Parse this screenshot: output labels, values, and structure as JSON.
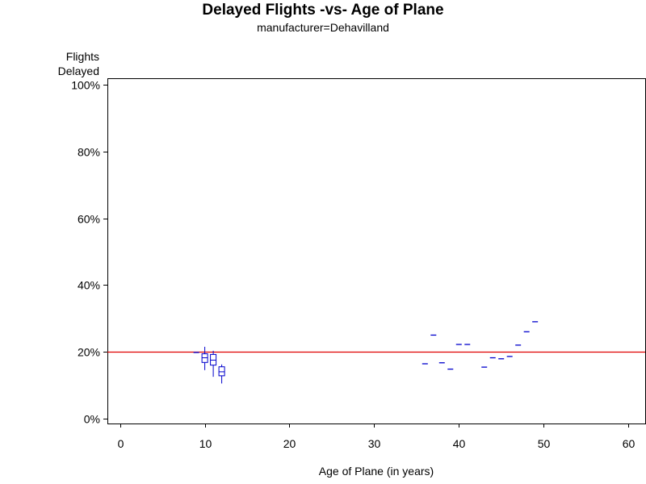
{
  "chart_data": {
    "type": "box",
    "title": "Delayed Flights -vs- Age of Plane",
    "subtitle": "manufacturer=Dehavilland",
    "ylabel": [
      "Flights",
      "Delayed"
    ],
    "xlabel": "Age of Plane (in years)",
    "xlim": [
      -1.5,
      62
    ],
    "ylim": [
      -1.5,
      102
    ],
    "x_ticks": [
      0,
      10,
      20,
      30,
      40,
      50,
      60
    ],
    "y_ticks": [
      0,
      20,
      40,
      60,
      80,
      100
    ],
    "y_tick_labels": [
      "0%",
      "20%",
      "40%",
      "60%",
      "80%",
      "100%"
    ],
    "reference_line": {
      "y": 20,
      "color": "#e00000"
    },
    "box_color": "#0000cc",
    "boxes": [
      {
        "x": 9,
        "min": 19.8,
        "q1": 19.8,
        "median": 19.8,
        "q3": 19.8,
        "max": 19.8
      },
      {
        "x": 10,
        "min": 14.5,
        "q1": 16.8,
        "median": 18.2,
        "q3": 19.4,
        "max": 21.5
      },
      {
        "x": 11,
        "min": 12.5,
        "q1": 16.0,
        "median": 17.5,
        "q3": 19.2,
        "max": 20.3
      },
      {
        "x": 12,
        "min": 10.5,
        "q1": 12.8,
        "median": 14.0,
        "q3": 15.5,
        "max": 16.2
      },
      {
        "x": 36,
        "min": 16.4,
        "q1": 16.4,
        "median": 16.4,
        "q3": 16.4,
        "max": 16.4
      },
      {
        "x": 37,
        "min": 25.0,
        "q1": 25.0,
        "median": 25.0,
        "q3": 25.0,
        "max": 25.0
      },
      {
        "x": 38,
        "min": 16.7,
        "q1": 16.7,
        "median": 16.7,
        "q3": 16.7,
        "max": 16.7
      },
      {
        "x": 39,
        "min": 14.8,
        "q1": 14.8,
        "median": 14.8,
        "q3": 14.8,
        "max": 14.8
      },
      {
        "x": 40,
        "min": 22.2,
        "q1": 22.2,
        "median": 22.2,
        "q3": 22.2,
        "max": 22.2
      },
      {
        "x": 41,
        "min": 22.2,
        "q1": 22.2,
        "median": 22.2,
        "q3": 22.2,
        "max": 22.2
      },
      {
        "x": 43,
        "min": 15.4,
        "q1": 15.4,
        "median": 15.4,
        "q3": 15.4,
        "max": 15.4
      },
      {
        "x": 44,
        "min": 18.2,
        "q1": 18.2,
        "median": 18.2,
        "q3": 18.2,
        "max": 18.2
      },
      {
        "x": 45,
        "min": 17.9,
        "q1": 17.9,
        "median": 17.9,
        "q3": 17.9,
        "max": 17.9
      },
      {
        "x": 46,
        "min": 18.6,
        "q1": 18.6,
        "median": 18.6,
        "q3": 18.6,
        "max": 18.6
      },
      {
        "x": 47,
        "min": 22.0,
        "q1": 22.0,
        "median": 22.0,
        "q3": 22.0,
        "max": 22.0
      },
      {
        "x": 48,
        "min": 26.0,
        "q1": 26.0,
        "median": 26.0,
        "q3": 26.0,
        "max": 26.0
      },
      {
        "x": 49,
        "min": 29.0,
        "q1": 29.0,
        "median": 29.0,
        "q3": 29.0,
        "max": 29.0
      }
    ]
  }
}
